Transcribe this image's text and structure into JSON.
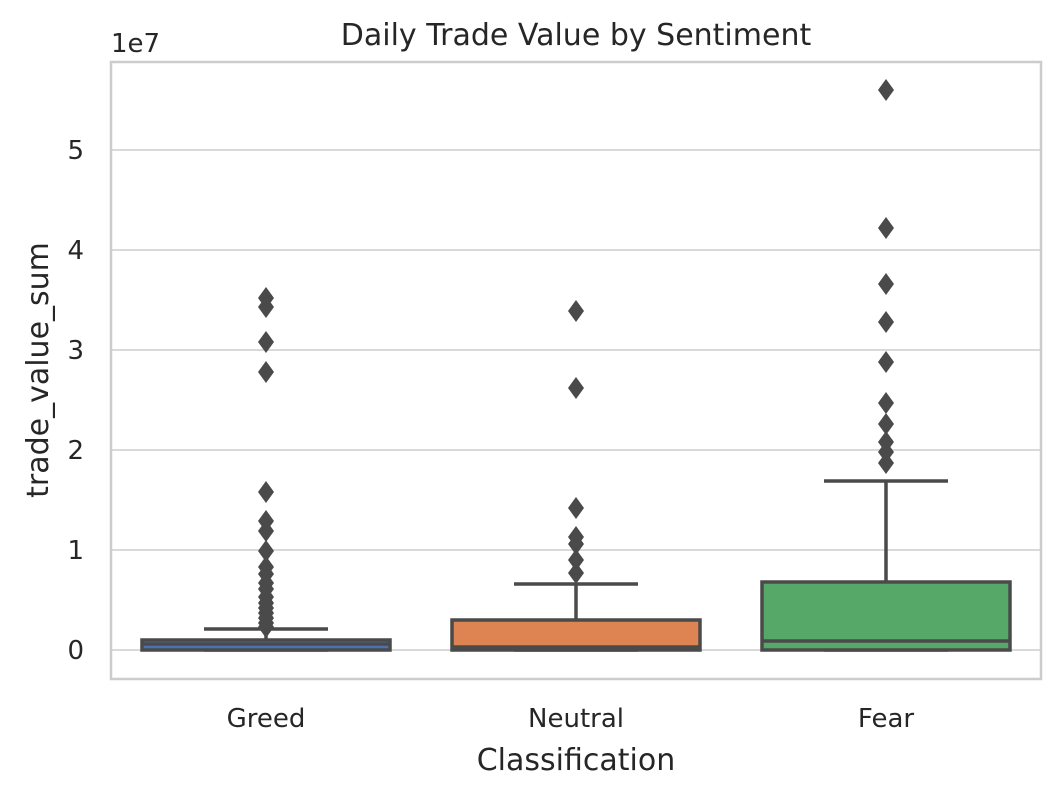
{
  "chart_data": {
    "type": "box",
    "title": "Daily Trade Value by Sentiment",
    "xlabel": "Classification",
    "ylabel": "trade_value_sum",
    "y_exponent_label": "1e7",
    "y_scale": 10000000,
    "ylim": [
      -2800000,
      59000000
    ],
    "yticks": [
      0,
      10000000,
      20000000,
      30000000,
      40000000,
      50000000
    ],
    "ytick_labels": [
      "0",
      "1",
      "2",
      "3",
      "4",
      "5"
    ],
    "grid": true,
    "categories": [
      "Greed",
      "Neutral",
      "Fear"
    ],
    "colors": [
      "#4c72b0",
      "#dd8452",
      "#55a868"
    ],
    "boxes": [
      {
        "category": "Greed",
        "min": 0,
        "q1": 0,
        "median": 600000,
        "q3": 1000000,
        "whisker_high": 2100000,
        "outliers": [
          35200000,
          34300000,
          30800000,
          27800000,
          15800000,
          12900000,
          11900000,
          9900000,
          8300000,
          7600000,
          6700000,
          6100000,
          5300000,
          4700000,
          4200000,
          3700000,
          3200000,
          2700000,
          2300000
        ]
      },
      {
        "category": "Neutral",
        "min": 0,
        "q1": 0,
        "median": 300000,
        "q3": 3000000,
        "whisker_high": 6600000,
        "outliers": [
          33900000,
          26200000,
          14200000,
          11300000,
          10600000,
          9000000,
          7700000
        ]
      },
      {
        "category": "Fear",
        "min": 0,
        "q1": 0,
        "median": 900000,
        "q3": 6800000,
        "whisker_high": 16900000,
        "outliers": [
          56000000,
          42200000,
          36600000,
          32800000,
          28800000,
          24700000,
          22600000,
          20800000,
          19800000,
          18700000
        ]
      }
    ]
  }
}
